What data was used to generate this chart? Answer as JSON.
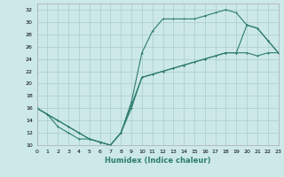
{
  "xlabel": "Humidex (Indice chaleur)",
  "background_color": "#cce8e8",
  "grid_color": "#aacccc",
  "line_color": "#2e7d6e",
  "xlim": [
    0,
    23
  ],
  "ylim": [
    10,
    33
  ],
  "xticks": [
    0,
    1,
    2,
    3,
    4,
    5,
    6,
    7,
    8,
    9,
    10,
    11,
    12,
    13,
    14,
    15,
    16,
    17,
    18,
    19,
    20,
    21,
    22,
    23
  ],
  "yticks": [
    10,
    12,
    14,
    16,
    18,
    20,
    22,
    24,
    26,
    28,
    30,
    32
  ],
  "series1_x": [
    0,
    1,
    2,
    3,
    4,
    5,
    6,
    7,
    8,
    9,
    10,
    11,
    12,
    13,
    14,
    15,
    16,
    17,
    18,
    19,
    20,
    21,
    22,
    23
  ],
  "series1_y": [
    16,
    15,
    14,
    13,
    12,
    11,
    10.5,
    10,
    12,
    16,
    21,
    21.5,
    22,
    22.5,
    23,
    23.5,
    24,
    24.5,
    25,
    25,
    25,
    24.5,
    25,
    25
  ],
  "series2_x": [
    0,
    1,
    2,
    3,
    4,
    5,
    6,
    7,
    8,
    9,
    10,
    11,
    12,
    13,
    14,
    15,
    16,
    17,
    18,
    19,
    20,
    21,
    22,
    23
  ],
  "series2_y": [
    16,
    15,
    13,
    12,
    11,
    11,
    10.5,
    10,
    12,
    17,
    25,
    28.5,
    30.5,
    30.5,
    30.5,
    30.5,
    31,
    31.5,
    32,
    31.5,
    29.5,
    29,
    27,
    25
  ],
  "series3_x": [
    0,
    1,
    2,
    3,
    4,
    5,
    6,
    7,
    8,
    9,
    10,
    11,
    12,
    13,
    14,
    15,
    16,
    17,
    18,
    19,
    20,
    21,
    22,
    23
  ],
  "series3_y": [
    16,
    15,
    14,
    13,
    12,
    11,
    10.5,
    10,
    12,
    16.5,
    21,
    21.5,
    22,
    22.5,
    23,
    23.5,
    24,
    24.5,
    25,
    25,
    29.5,
    29,
    27,
    25
  ]
}
